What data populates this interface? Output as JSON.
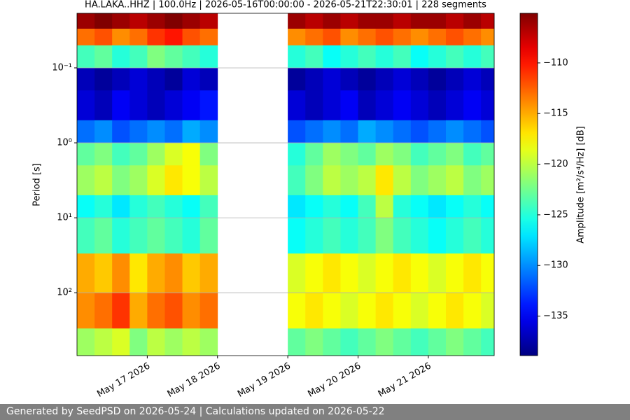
{
  "chart_data": {
    "type": "spectrogram",
    "title": "HA.LAKA..HHZ | 100.0Hz | 2026-05-16T00:00:00 - 2026-05-21T22:30:01 | 228 segments",
    "y_label": "Period [s]",
    "colorbar_label": "Amplitude [m²/s⁴/Hz] [dB]",
    "colormap": "jet",
    "log_y": true,
    "invert_y": true,
    "grid": true,
    "xlim": [
      "2026-05-16T00:00:00",
      "2026-05-21T22:30:01"
    ],
    "xticks": [
      {
        "value": "2026-05-17T00:00:00",
        "label": "May 17 2026"
      },
      {
        "value": "2026-05-18T00:00:00",
        "label": "May 18 2026"
      },
      {
        "value": "2026-05-19T00:00:00",
        "label": "May 19 2026"
      },
      {
        "value": "2026-05-20T00:00:00",
        "label": "May 20 2026"
      },
      {
        "value": "2026-05-21T00:00:00",
        "label": "May 21 2026"
      }
    ],
    "ylim": [
      0.0187,
      690
    ],
    "yticks": [
      {
        "value": 0.1,
        "label": "10⁻¹"
      },
      {
        "value": 1,
        "label": "10⁰"
      },
      {
        "value": 10,
        "label": "10¹"
      },
      {
        "value": 100,
        "label": "10²"
      }
    ],
    "clim": [
      -138.9,
      -105.1
    ],
    "cticks": [
      {
        "value": -110,
        "label": "−110"
      },
      {
        "value": -115,
        "label": "−115"
      },
      {
        "value": -120,
        "label": "−120"
      },
      {
        "value": -125,
        "label": "−125"
      },
      {
        "value": -130,
        "label": "−130"
      },
      {
        "value": -135,
        "label": "−135"
      }
    ],
    "x_edges": [
      "2026-05-16T00:00:00",
      "2026-05-16T06:00:00",
      "2026-05-16T12:00:00",
      "2026-05-16T18:00:00",
      "2026-05-17T00:00:00",
      "2026-05-17T06:00:00",
      "2026-05-17T12:00:00",
      "2026-05-17T18:00:00",
      "2026-05-18T00:00:00",
      "2026-05-18T06:00:00",
      "2026-05-18T12:00:00",
      "2026-05-18T18:00:00",
      "2026-05-19T00:00:00",
      "2026-05-19T06:00:00",
      "2026-05-19T12:00:00",
      "2026-05-19T18:00:00",
      "2026-05-20T00:00:00",
      "2026-05-20T06:00:00",
      "2026-05-20T12:00:00",
      "2026-05-20T18:00:00",
      "2026-05-21T00:00:00",
      "2026-05-21T06:00:00",
      "2026-05-21T12:00:00",
      "2026-05-21T18:00:00",
      "2026-05-21T22:30:01"
    ],
    "y_edges": [
      0.0187,
      0.03,
      0.05,
      0.1,
      0.2,
      0.5,
      1,
      2,
      5,
      10,
      30,
      100,
      300,
      690
    ],
    "values": [
      [
        -106,
        -105,
        -106,
        -107,
        -106,
        -105,
        -106,
        -107,
        null,
        null,
        null,
        null,
        -106,
        -107,
        -106,
        -107,
        -106,
        -106,
        -107,
        -106,
        -106,
        -107,
        -106,
        -107
      ],
      [
        -113,
        -112,
        -114,
        -113,
        -111,
        -110,
        -112,
        -113,
        null,
        null,
        null,
        null,
        -114,
        -113,
        -112,
        -114,
        -113,
        -112,
        -113,
        -114,
        -113,
        -112,
        -113,
        -114
      ],
      [
        -124,
        -123,
        -125,
        -124,
        -122,
        -123,
        -124,
        -125,
        null,
        null,
        null,
        null,
        -125,
        -124,
        -126,
        -125,
        -124,
        -125,
        -124,
        -126,
        -125,
        -124,
        -125,
        -124
      ],
      [
        -137,
        -138,
        -137,
        -136,
        -137,
        -138,
        -136,
        -137,
        null,
        null,
        null,
        null,
        -138,
        -137,
        -136,
        -137,
        -138,
        -137,
        -136,
        -137,
        -138,
        -137,
        -136,
        -137
      ],
      [
        -136,
        -137,
        -135,
        -136,
        -137,
        -136,
        -135,
        -134,
        null,
        null,
        null,
        null,
        -136,
        -137,
        -136,
        -135,
        -137,
        -136,
        -135,
        -136,
        -137,
        -136,
        -135,
        -136
      ],
      [
        -131,
        -130,
        -132,
        -131,
        -130,
        -131,
        -129,
        -130,
        null,
        null,
        null,
        null,
        -132,
        -131,
        -130,
        -131,
        -129,
        -130,
        -131,
        -132,
        -131,
        -130,
        -131,
        -132
      ],
      [
        -123,
        -122,
        -124,
        -123,
        -121,
        -119,
        -118,
        -122,
        null,
        null,
        null,
        null,
        -125,
        -123,
        -121,
        -122,
        -123,
        -121,
        -122,
        -124,
        -123,
        -122,
        -124,
        -123
      ],
      [
        -121,
        -120,
        -122,
        -121,
        -119,
        -117,
        -118,
        -120,
        null,
        null,
        null,
        null,
        -124,
        -122,
        -120,
        -121,
        -120,
        -117,
        -120,
        -122,
        -121,
        -120,
        -122,
        -121
      ],
      [
        -126,
        -125,
        -127,
        -125,
        -124,
        -125,
        -126,
        -124,
        null,
        null,
        null,
        null,
        -127,
        -126,
        -125,
        -126,
        -124,
        -120,
        -125,
        -126,
        -127,
        -126,
        -125,
        -126
      ],
      [
        -124,
        -123,
        -125,
        -124,
        -123,
        -124,
        -125,
        -123,
        null,
        null,
        null,
        null,
        -126,
        -125,
        -124,
        -125,
        -124,
        -122,
        -124,
        -125,
        -126,
        -125,
        -124,
        -125
      ],
      [
        -115,
        -116,
        -114,
        -117,
        -115,
        -114,
        -116,
        -115,
        null,
        null,
        null,
        null,
        -119,
        -118,
        -117,
        -118,
        -119,
        -118,
        -117,
        -118,
        -119,
        -118,
        -117,
        -118
      ],
      [
        -114,
        -113,
        -111,
        -115,
        -113,
        -112,
        -114,
        -113,
        null,
        null,
        null,
        null,
        -118,
        -117,
        -118,
        -119,
        -118,
        -117,
        -118,
        -119,
        -118,
        -117,
        -118,
        -119
      ],
      [
        -121,
        -120,
        -119,
        -122,
        -120,
        -121,
        -120,
        -121,
        null,
        null,
        null,
        null,
        -123,
        -122,
        -123,
        -124,
        -123,
        -122,
        -123,
        -124,
        -123,
        -122,
        -123,
        -124
      ]
    ]
  },
  "footer": "Generated by SeedPSD on 2026-05-24 | Calculations updated on 2026-05-22"
}
